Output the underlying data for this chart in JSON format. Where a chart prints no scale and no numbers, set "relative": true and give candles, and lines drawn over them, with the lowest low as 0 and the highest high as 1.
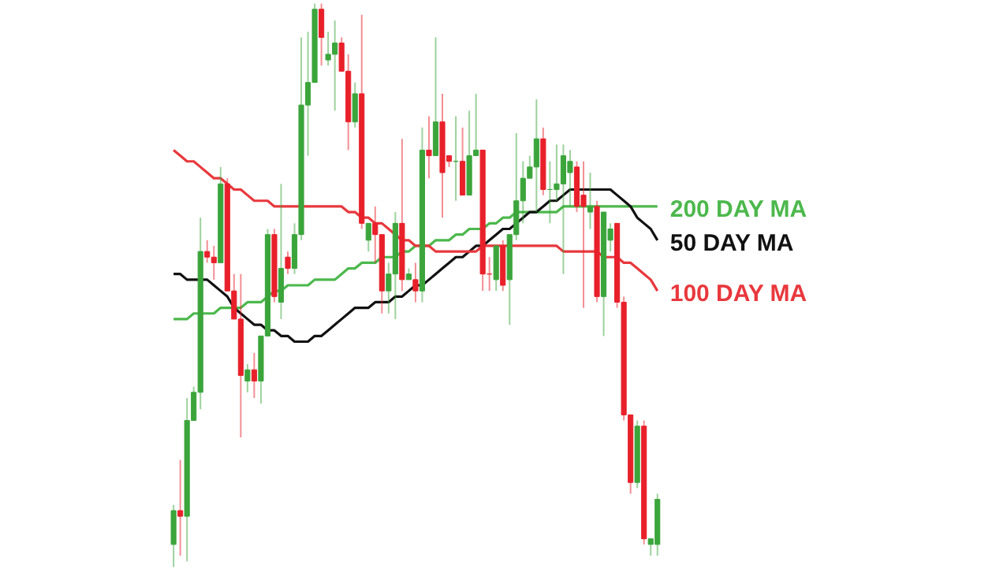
{
  "chart_data": {
    "type": "candlestick",
    "relative": true,
    "categories": [
      null,
      null,
      null,
      null,
      null,
      null,
      null,
      null,
      null,
      null,
      null,
      null,
      null,
      null,
      null,
      null,
      null,
      null,
      null,
      null,
      null,
      null,
      null,
      null,
      null,
      null,
      null,
      null,
      null,
      null,
      null,
      null,
      null,
      null,
      null,
      null,
      null,
      null,
      null,
      null,
      null,
      null,
      null,
      null,
      null,
      null,
      null,
      null,
      null,
      null,
      null,
      null,
      null,
      null,
      null,
      null,
      null,
      null,
      null,
      null,
      null,
      null,
      null,
      null,
      null,
      null,
      null,
      null,
      null,
      null,
      null,
      null,
      null
    ],
    "ohlc": [
      [
        0.04,
        0.11,
        0,
        0.1
      ],
      [
        0.1,
        0.19,
        0.02,
        0.09
      ],
      [
        0.09,
        0.3,
        0.01,
        0.26
      ],
      [
        0.26,
        0.32,
        0.26,
        0.31
      ],
      [
        0.31,
        0.62,
        0.28,
        0.56
      ],
      [
        0.56,
        0.58,
        0.54,
        0.55
      ],
      [
        0.55,
        0.57,
        0.51,
        0.54
      ],
      [
        0.54,
        0.71,
        0.54,
        0.68
      ],
      [
        0.68,
        0.69,
        0.49,
        0.49
      ],
      [
        0.49,
        0.52,
        0.44,
        0.44
      ],
      [
        0.44,
        0.52,
        0.23,
        0.34
      ],
      [
        0.33,
        0.36,
        0.31,
        0.35
      ],
      [
        0.35,
        0.38,
        0.3,
        0.33
      ],
      [
        0.33,
        0.41,
        0.29,
        0.41
      ],
      [
        0.41,
        0.6,
        0.41,
        0.59
      ],
      [
        0.59,
        0.6,
        0.47,
        0.48
      ],
      [
        0.47,
        0.68,
        0.44,
        0.53
      ],
      [
        0.55,
        0.56,
        0.52,
        0.53
      ],
      [
        0.53,
        0.61,
        0.52,
        0.59
      ],
      [
        0.59,
        0.94,
        0.58,
        0.82
      ],
      [
        0.82,
        0.95,
        0.73,
        0.86
      ],
      [
        0.86,
        1.0,
        0.86,
        0.99
      ],
      [
        0.99,
        1.0,
        0.89,
        0.94
      ],
      [
        0.9,
        0.95,
        0.89,
        0.91
      ],
      [
        0.91,
        0.97,
        0.81,
        0.93
      ],
      [
        0.93,
        0.94,
        0.88,
        0.88
      ],
      [
        0.88,
        0.91,
        0.74,
        0.79
      ],
      [
        0.79,
        0.86,
        0.78,
        0.84
      ],
      [
        0.84,
        0.98,
        0.6,
        0.61
      ],
      [
        0.58,
        0.61,
        0.56,
        0.61
      ],
      [
        0.61,
        0.64,
        0.54,
        0.59
      ],
      [
        0.59,
        0.59,
        0.45,
        0.49
      ],
      [
        0.49,
        0.54,
        0.45,
        0.52
      ],
      [
        0.52,
        0.63,
        0.44,
        0.61
      ],
      [
        0.61,
        0.76,
        0.49,
        0.51
      ],
      [
        0.51,
        0.53,
        0.51,
        0.52
      ],
      [
        0.51,
        0.54,
        0.47,
        0.49
      ],
      [
        0.49,
        0.78,
        0.47,
        0.74
      ],
      [
        0.74,
        0.8,
        0.69,
        0.73
      ],
      [
        0.73,
        0.94,
        0.73,
        0.79
      ],
      [
        0.79,
        0.84,
        0.62,
        0.7
      ],
      [
        0.73,
        0.73,
        0.71,
        0.72
      ],
      [
        0.72,
        0.8,
        0.65,
        0.72
      ],
      [
        0.72,
        0.78,
        0.66,
        0.66
      ],
      [
        0.66,
        0.81,
        0.66,
        0.73
      ],
      [
        0.73,
        0.84,
        0.73,
        0.74
      ],
      [
        0.74,
        0.74,
        0.49,
        0.52
      ],
      [
        0.52,
        0.55,
        0.49,
        0.52
      ],
      [
        0.51,
        0.57,
        0.49,
        0.57
      ],
      [
        0.57,
        0.58,
        0.49,
        0.5
      ],
      [
        0.51,
        0.59,
        0.43,
        0.59
      ],
      [
        0.59,
        0.77,
        0.58,
        0.65
      ],
      [
        0.65,
        0.72,
        0.61,
        0.69
      ],
      [
        0.69,
        0.73,
        0.69,
        0.71
      ],
      [
        0.71,
        0.83,
        0.63,
        0.76
      ],
      [
        0.76,
        0.78,
        0.66,
        0.67
      ],
      [
        0.67,
        0.72,
        0.61,
        0.67
      ],
      [
        0.67,
        0.75,
        0.65,
        0.68
      ],
      [
        0.68,
        0.75,
        0.52,
        0.73
      ],
      [
        0.7,
        0.74,
        0.64,
        0.72
      ],
      [
        0.71,
        0.72,
        0.63,
        0.64
      ],
      [
        0.66,
        0.72,
        0.46,
        0.64
      ],
      [
        0.63,
        0.7,
        0.6,
        0.64
      ],
      [
        0.64,
        0.65,
        0.47,
        0.48
      ],
      [
        0.48,
        0.63,
        0.41,
        0.63
      ],
      [
        0.58,
        0.61,
        0.56,
        0.6
      ],
      [
        0.61,
        0.61,
        0.46,
        0.47
      ],
      [
        0.47,
        0.48,
        0.26,
        0.27
      ],
      [
        0.27,
        0.27,
        0.13,
        0.15
      ],
      [
        0.15,
        0.26,
        0.14,
        0.25
      ],
      [
        0.25,
        0.26,
        0.04,
        0.05
      ],
      [
        0.04,
        0.05,
        0.02,
        0.05
      ],
      [
        0.04,
        0.13,
        0.02,
        0.12
      ]
    ],
    "colors": [
      "#3ba53b",
      "#e8202a",
      "#3ba53b",
      "#3ba53b",
      "#3ba53b",
      "#e8202a",
      "#e8202a",
      "#3ba53b",
      "#e8202a",
      "#e8202a",
      "#e8202a",
      "#3ba53b",
      "#e8202a",
      "#3ba53b",
      "#3ba53b",
      "#e8202a",
      "#3ba53b",
      "#e8202a",
      "#3ba53b",
      "#3ba53b",
      "#3ba53b",
      "#3ba53b",
      "#e8202a",
      "#3ba53b",
      "#3ba53b",
      "#e8202a",
      "#e8202a",
      "#3ba53b",
      "#e8202a",
      "#3ba53b",
      "#e8202a",
      "#e8202a",
      "#3ba53b",
      "#3ba53b",
      "#e8202a",
      "#3ba53b",
      "#e8202a",
      "#3ba53b",
      "#e8202a",
      "#3ba53b",
      "#e8202a",
      "#e8202a",
      "#3ba53b",
      "#e8202a",
      "#3ba53b",
      "#3ba53b",
      "#e8202a",
      "#e8202a",
      "#3ba53b",
      "#e8202a",
      "#3ba53b",
      "#3ba53b",
      "#3ba53b",
      "#3ba53b",
      "#3ba53b",
      "#e8202a",
      "#3ba53b",
      "#3ba53b",
      "#3ba53b",
      "#3ba53b",
      "#e8202a",
      "#e8202a",
      "#3ba53b",
      "#e8202a",
      "#3ba53b",
      "#3ba53b",
      "#e8202a",
      "#e8202a",
      "#e8202a",
      "#3ba53b",
      "#e8202a",
      "#3ba53b",
      "#3ba53b"
    ],
    "series": [
      {
        "type": "line",
        "name": "200 DAY MA",
        "color": "#4cb84c",
        "values": [
          0.44,
          0.44,
          0.44,
          0.45,
          0.45,
          0.45,
          0.45,
          0.46,
          0.46,
          0.46,
          0.46,
          0.47,
          0.47,
          0.47,
          0.48,
          0.49,
          0.49,
          0.5,
          0.5,
          0.5,
          0.5,
          0.51,
          0.51,
          0.51,
          0.51,
          0.52,
          0.53,
          0.53,
          0.54,
          0.54,
          0.54,
          0.55,
          0.55,
          0.55,
          0.56,
          0.56,
          0.57,
          0.57,
          0.57,
          0.58,
          0.58,
          0.58,
          0.59,
          0.59,
          0.6,
          0.6,
          0.6,
          0.61,
          0.61,
          0.62,
          0.62,
          0.63,
          0.63,
          0.63,
          0.63,
          0.63,
          0.63,
          0.63,
          0.64,
          0.64,
          0.64,
          0.64,
          0.64,
          0.64,
          0.64,
          0.64,
          0.64,
          0.64,
          0.64,
          0.64,
          0.64,
          0.64,
          0.64
        ]
      },
      {
        "type": "line",
        "name": "50 DAY MA",
        "color": "#111111",
        "values": [
          0.52,
          0.52,
          0.51,
          0.51,
          0.51,
          0.51,
          0.5,
          0.49,
          0.48,
          0.46,
          0.45,
          0.44,
          0.43,
          0.43,
          0.42,
          0.42,
          0.41,
          0.41,
          0.4,
          0.4,
          0.4,
          0.41,
          0.41,
          0.42,
          0.43,
          0.44,
          0.45,
          0.46,
          0.46,
          0.46,
          0.47,
          0.47,
          0.47,
          0.48,
          0.48,
          0.49,
          0.5,
          0.5,
          0.51,
          0.52,
          0.53,
          0.54,
          0.55,
          0.55,
          0.56,
          0.57,
          0.57,
          0.58,
          0.59,
          0.6,
          0.6,
          0.61,
          0.62,
          0.63,
          0.63,
          0.64,
          0.65,
          0.65,
          0.66,
          0.67,
          0.67,
          0.67,
          0.67,
          0.67,
          0.67,
          0.67,
          0.66,
          0.65,
          0.64,
          0.62,
          0.61,
          0.6,
          0.58
        ]
      },
      {
        "type": "line",
        "name": "100 DAY MA",
        "color": "#e8383d",
        "values": [
          0.74,
          0.73,
          0.72,
          0.72,
          0.71,
          0.7,
          0.69,
          0.69,
          0.68,
          0.67,
          0.67,
          0.66,
          0.65,
          0.65,
          0.65,
          0.64,
          0.64,
          0.64,
          0.64,
          0.64,
          0.64,
          0.64,
          0.64,
          0.64,
          0.64,
          0.64,
          0.63,
          0.63,
          0.62,
          0.62,
          0.61,
          0.61,
          0.6,
          0.59,
          0.58,
          0.58,
          0.57,
          0.57,
          0.57,
          0.56,
          0.56,
          0.56,
          0.56,
          0.56,
          0.56,
          0.56,
          0.57,
          0.57,
          0.57,
          0.57,
          0.57,
          0.57,
          0.57,
          0.57,
          0.57,
          0.57,
          0.57,
          0.57,
          0.56,
          0.56,
          0.56,
          0.56,
          0.56,
          0.56,
          0.55,
          0.55,
          0.55,
          0.54,
          0.54,
          0.53,
          0.52,
          0.51,
          0.49
        ]
      }
    ]
  }
}
